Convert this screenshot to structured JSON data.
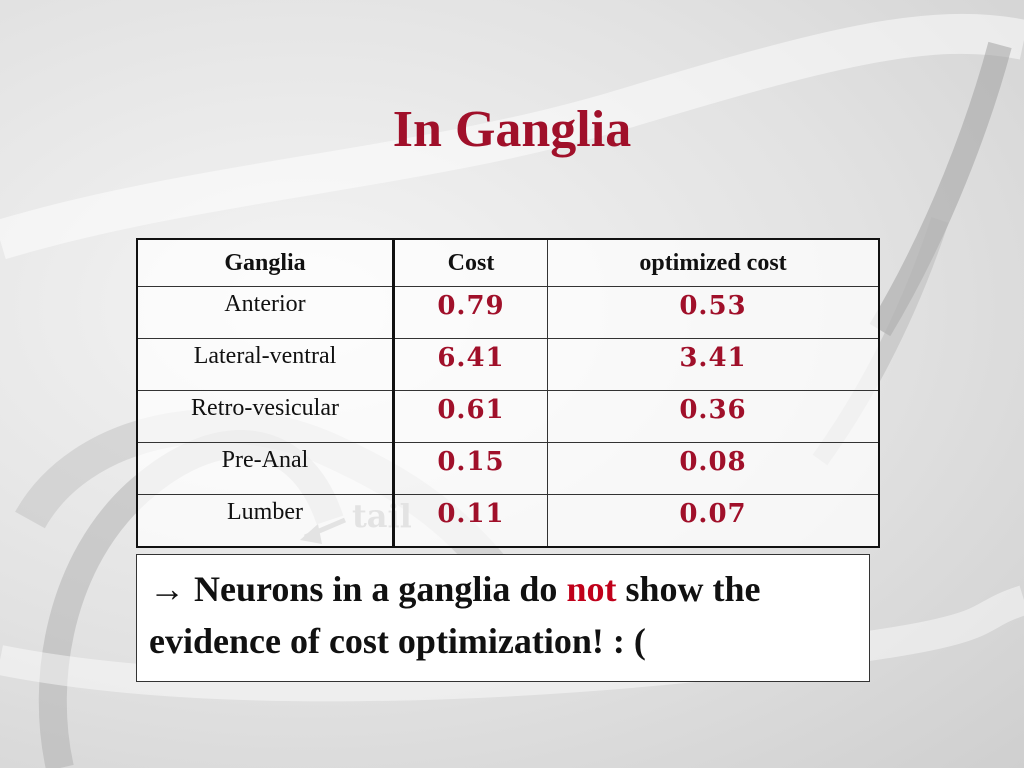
{
  "slide": {
    "title": "In Ganglia",
    "background_label": "tail"
  },
  "table": {
    "headers": [
      "Ganglia",
      "Cost",
      "optimized cost"
    ],
    "rows": [
      {
        "ganglia": "Anterior",
        "cost": "0.79",
        "optimized": "0.53"
      },
      {
        "ganglia": "Lateral-ventral",
        "cost": "6.41",
        "optimized": "3.41"
      },
      {
        "ganglia": "Retro-vesicular",
        "cost": "0.61",
        "optimized": "0.36"
      },
      {
        "ganglia": "Pre-Anal",
        "cost": "0.15",
        "optimized": "0.08"
      },
      {
        "ganglia": "Lumber",
        "cost": "0.11",
        "optimized": "0.07"
      }
    ]
  },
  "conclusion": {
    "arrow": "→",
    "before": "Neurons in a ganglia do",
    "emphasis": "not",
    "after": "show the evidence of cost optimization! : ("
  },
  "colors": {
    "title": "#a0102a",
    "values": "#a0102a",
    "emphasis": "#c0001a"
  }
}
